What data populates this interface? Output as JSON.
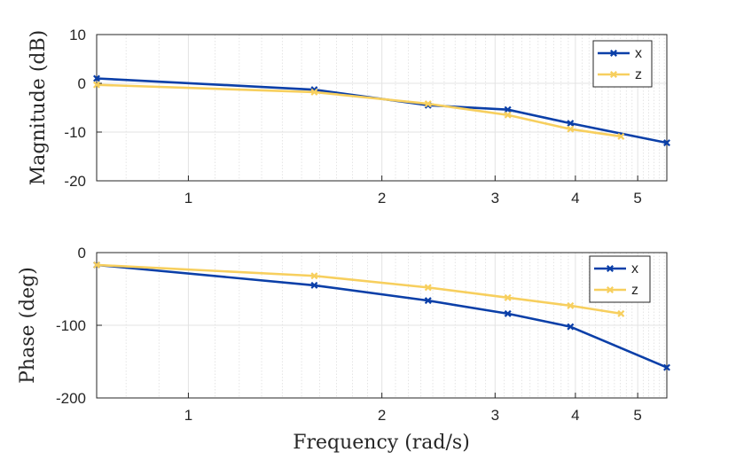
{
  "chart_data": [
    {
      "type": "line",
      "title": "",
      "xscale": "log",
      "xlabel": "",
      "ylabel": "Magnitude (dB)",
      "xlim": [
        0.72,
        5.55
      ],
      "ylim": [
        -20,
        10
      ],
      "xticks": [
        1,
        2,
        3,
        4,
        5
      ],
      "yticks": [
        10,
        0,
        -10,
        -20
      ],
      "grid": true,
      "legend_position": "top-right",
      "series": [
        {
          "name": "x",
          "color": "#0b3fa8",
          "marker": "x",
          "x": [
            0.72,
            1.57,
            2.36,
            3.14,
            3.93,
            5.55
          ],
          "y": [
            1.0,
            -1.3,
            -4.5,
            -5.4,
            -8.2,
            -12.2
          ]
        },
        {
          "name": "z",
          "color": "#f7cf5e",
          "marker": "x",
          "x": [
            0.72,
            1.57,
            2.36,
            3.14,
            3.93,
            4.71
          ],
          "y": [
            -0.3,
            -1.8,
            -4.2,
            -6.5,
            -9.4,
            -10.9
          ]
        }
      ]
    },
    {
      "type": "line",
      "title": "",
      "xscale": "log",
      "xlabel": "Frequency (rad/s)",
      "ylabel": "Phase (deg)",
      "xlim": [
        0.72,
        5.55
      ],
      "ylim": [
        -200,
        0
      ],
      "xticks": [
        1,
        2,
        3,
        4,
        5
      ],
      "yticks": [
        0,
        -100,
        -200
      ],
      "grid": true,
      "legend_position": "top-right",
      "series": [
        {
          "name": "x",
          "color": "#0b3fa8",
          "marker": "x",
          "x": [
            0.72,
            1.57,
            2.36,
            3.14,
            3.93,
            5.55
          ],
          "y": [
            -17,
            -45,
            -66,
            -84,
            -102,
            -158
          ]
        },
        {
          "name": "z",
          "color": "#f7cf5e",
          "marker": "x",
          "x": [
            0.72,
            1.57,
            2.36,
            3.14,
            3.93,
            4.71
          ],
          "y": [
            -17,
            -32,
            -48,
            -62,
            -73,
            -84
          ]
        }
      ]
    }
  ]
}
